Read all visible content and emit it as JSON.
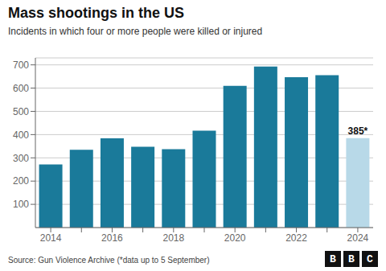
{
  "chart_data": {
    "type": "bar",
    "title": "Mass shootings in the US",
    "subtitle": "Incidents in which four or more people were killed or injured",
    "categories": [
      "2014",
      null,
      "2016",
      null,
      "2018",
      null,
      "2020",
      null,
      "2022",
      null,
      "2024"
    ],
    "values": [
      272,
      335,
      384,
      348,
      337,
      417,
      610,
      693,
      647,
      656,
      385
    ],
    "colors": [
      "#1a7a9a",
      "#1a7a9a",
      "#1a7a9a",
      "#1a7a9a",
      "#1a7a9a",
      "#1a7a9a",
      "#1a7a9a",
      "#1a7a9a",
      "#1a7a9a",
      "#1a7a9a",
      "#b8d9e8"
    ],
    "annotations": [
      {
        "text": "385*",
        "x": "2024"
      }
    ],
    "source": "Source: Gun Violence Archive (*data up to 5 September)",
    "logo": "BBC",
    "ylim": [
      0,
      730
    ],
    "yticks": [
      100,
      200,
      300,
      400,
      500,
      600,
      700
    ],
    "grid": true
  }
}
